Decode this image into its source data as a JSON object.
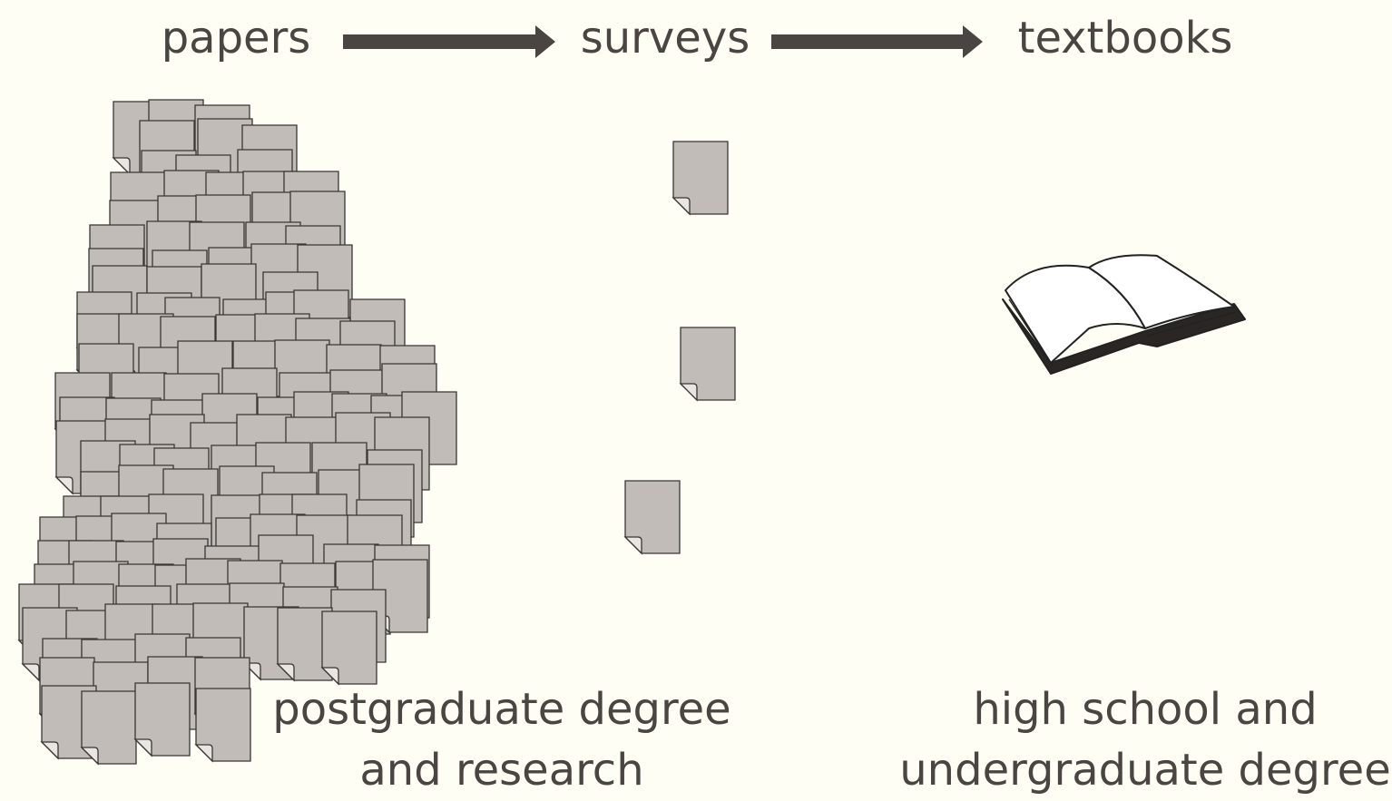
{
  "stages": [
    {
      "label": "papers"
    },
    {
      "label": "surveys"
    },
    {
      "label": "textbooks"
    }
  ],
  "captions": {
    "research": [
      "postgraduate degree",
      "and research"
    ],
    "education": [
      "high school and",
      "undergraduate degree"
    ]
  }
}
